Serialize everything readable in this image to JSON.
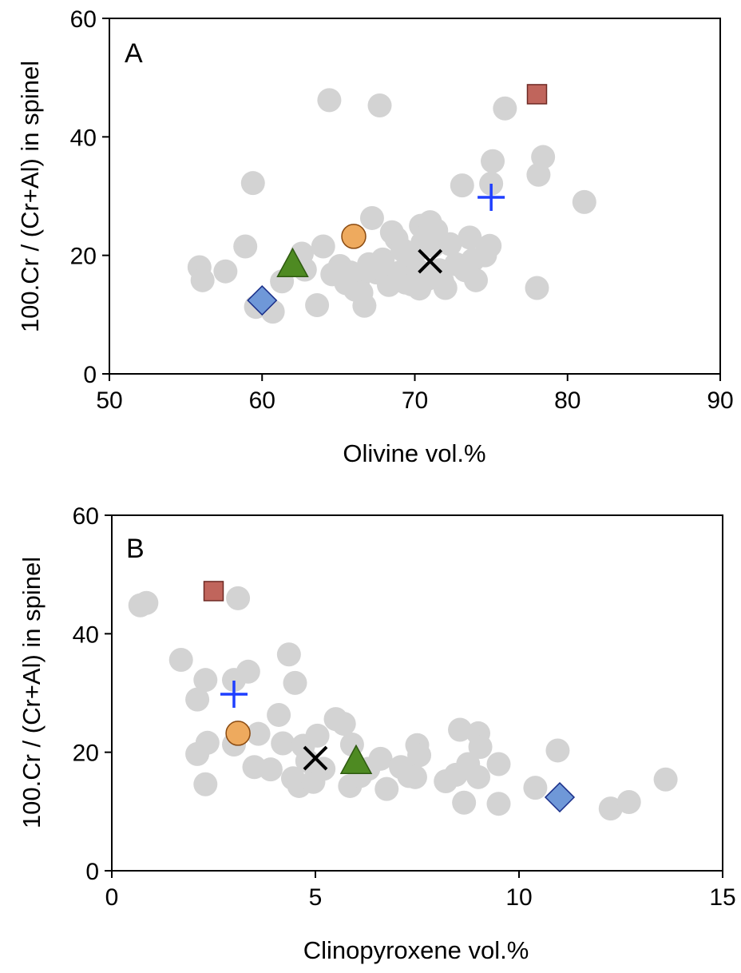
{
  "colors": {
    "background_points": "#d3d3d3",
    "square": "#c0655c",
    "circle": "#eeaa5e",
    "triangle": "#4e8a22",
    "diamond": "#6f98d8",
    "plus": "#1f3fff",
    "cross": "#000000"
  },
  "chart_data": [
    {
      "type": "scatter",
      "panel_label": "A",
      "xlabel": "Olivine vol.%",
      "ylabel": "100.Cr / (Cr+Al) in spinel",
      "xlim": [
        50,
        90
      ],
      "ylim": [
        0,
        60
      ],
      "xticks": [
        "50",
        "60",
        "70",
        "80",
        "90"
      ],
      "yticks": [
        "0",
        "20",
        "40",
        "60"
      ],
      "grid": false,
      "background_series": {
        "marker": "circle",
        "points": [
          [
            55.9,
            18
          ],
          [
            56.1,
            15.8
          ],
          [
            57.6,
            17.3
          ],
          [
            58.9,
            21.5
          ],
          [
            59.4,
            32.2
          ],
          [
            59.6,
            11.3
          ],
          [
            60.7,
            10.5
          ],
          [
            61.3,
            15.6
          ],
          [
            62.6,
            20.3
          ],
          [
            62.8,
            17.6
          ],
          [
            63.6,
            11.6
          ],
          [
            64.0,
            21.5
          ],
          [
            64.4,
            46.2
          ],
          [
            64.6,
            16.8
          ],
          [
            65.1,
            18.2
          ],
          [
            65.5,
            15.3
          ],
          [
            65.8,
            17.1
          ],
          [
            66.1,
            14.2
          ],
          [
            66.3,
            15.9
          ],
          [
            66.5,
            13.7
          ],
          [
            66.7,
            11.5
          ],
          [
            67.0,
            18.5
          ],
          [
            67.2,
            26.3
          ],
          [
            67.5,
            17.1
          ],
          [
            67.7,
            45.3
          ],
          [
            67.9,
            19.3
          ],
          [
            68.2,
            16.5
          ],
          [
            68.3,
            15.0
          ],
          [
            68.5,
            23.9
          ],
          [
            68.8,
            22.8
          ],
          [
            69.0,
            17.1
          ],
          [
            69.2,
            20.9
          ],
          [
            69.4,
            15.4
          ],
          [
            69.6,
            18.6
          ],
          [
            69.8,
            15.1
          ],
          [
            70.0,
            20.5
          ],
          [
            70.2,
            17.5
          ],
          [
            70.3,
            14.4
          ],
          [
            70.4,
            25.0
          ],
          [
            70.5,
            22.1
          ],
          [
            70.8,
            16.0
          ],
          [
            71.0,
            25.6
          ],
          [
            71.2,
            21.6
          ],
          [
            71.4,
            24.2
          ],
          [
            71.6,
            17.5
          ],
          [
            71.8,
            15.6
          ],
          [
            72.0,
            14.5
          ],
          [
            72.3,
            21.9
          ],
          [
            72.7,
            18.5
          ],
          [
            73.1,
            31.8
          ],
          [
            73.3,
            17.5
          ],
          [
            73.6,
            23.0
          ],
          [
            73.8,
            19.2
          ],
          [
            74.0,
            15.8
          ],
          [
            74.6,
            20.0
          ],
          [
            74.9,
            21.6
          ],
          [
            75.1,
            35.9
          ],
          [
            75.0,
            32.1
          ],
          [
            75.9,
            44.8
          ],
          [
            78.0,
            14.5
          ],
          [
            78.1,
            33.6
          ],
          [
            78.4,
            36.6
          ],
          [
            81.1,
            29.0
          ]
        ]
      },
      "highlight_series": [
        {
          "marker": "square",
          "x": 78.0,
          "y": 47.2
        },
        {
          "marker": "circle",
          "x": 66.0,
          "y": 23.2
        },
        {
          "marker": "triangle",
          "x": 62.0,
          "y": 18.3
        },
        {
          "marker": "diamond",
          "x": 60.0,
          "y": 12.4
        },
        {
          "marker": "plus",
          "x": 75.0,
          "y": 29.8
        },
        {
          "marker": "cross",
          "x": 71.0,
          "y": 19.0
        }
      ]
    },
    {
      "type": "scatter",
      "panel_label": "B",
      "xlabel": "Clinopyroxene vol.%",
      "ylabel": "100.Cr / (Cr+Al) in spinel",
      "xlim": [
        0,
        15
      ],
      "ylim": [
        0,
        60
      ],
      "xticks": [
        "0",
        "5",
        "10",
        "15"
      ],
      "yticks": [
        "0",
        "20",
        "40",
        "60"
      ],
      "grid": false,
      "background_series": {
        "marker": "circle",
        "points": [
          [
            0.7,
            44.8
          ],
          [
            0.85,
            45.2
          ],
          [
            1.7,
            35.6
          ],
          [
            2.1,
            28.9
          ],
          [
            2.1,
            19.7
          ],
          [
            2.3,
            32.2
          ],
          [
            2.3,
            14.6
          ],
          [
            2.35,
            21.6
          ],
          [
            3.1,
            46.0
          ],
          [
            3.0,
            32.2
          ],
          [
            3.0,
            21.3
          ],
          [
            3.35,
            33.6
          ],
          [
            3.5,
            17.5
          ],
          [
            3.6,
            23.1
          ],
          [
            3.9,
            17.1
          ],
          [
            4.1,
            26.3
          ],
          [
            4.2,
            21.5
          ],
          [
            4.35,
            36.5
          ],
          [
            4.45,
            15.6
          ],
          [
            4.5,
            31.7
          ],
          [
            4.6,
            14.3
          ],
          [
            4.7,
            21.1
          ],
          [
            4.8,
            18.5
          ],
          [
            4.95,
            15.0
          ],
          [
            5.05,
            22.8
          ],
          [
            5.2,
            17.2
          ],
          [
            5.5,
            25.6
          ],
          [
            5.7,
            24.8
          ],
          [
            5.85,
            14.3
          ],
          [
            5.9,
            21.3
          ],
          [
            6.1,
            16.0
          ],
          [
            6.3,
            17.2
          ],
          [
            6.6,
            18.9
          ],
          [
            6.75,
            13.8
          ],
          [
            7.1,
            17.5
          ],
          [
            7.3,
            16.0
          ],
          [
            7.5,
            21.2
          ],
          [
            7.55,
            19.5
          ],
          [
            7.45,
            15.8
          ],
          [
            8.2,
            15.1
          ],
          [
            8.45,
            16.2
          ],
          [
            8.55,
            23.8
          ],
          [
            8.65,
            11.5
          ],
          [
            8.75,
            18.0
          ],
          [
            9.0,
            23.2
          ],
          [
            9.05,
            20.9
          ],
          [
            9.0,
            15.8
          ],
          [
            9.5,
            11.3
          ],
          [
            9.5,
            18.0
          ],
          [
            10.4,
            14.0
          ],
          [
            10.95,
            20.3
          ],
          [
            12.25,
            10.5
          ],
          [
            12.7,
            11.6
          ],
          [
            13.6,
            15.4
          ]
        ]
      },
      "highlight_series": [
        {
          "marker": "square",
          "x": 2.5,
          "y": 47.2
        },
        {
          "marker": "circle",
          "x": 3.1,
          "y": 23.2
        },
        {
          "marker": "triangle",
          "x": 6.0,
          "y": 18.3
        },
        {
          "marker": "diamond",
          "x": 11.0,
          "y": 12.4
        },
        {
          "marker": "plus",
          "x": 3.0,
          "y": 29.8
        },
        {
          "marker": "cross",
          "x": 5.0,
          "y": 19.0
        }
      ]
    }
  ]
}
